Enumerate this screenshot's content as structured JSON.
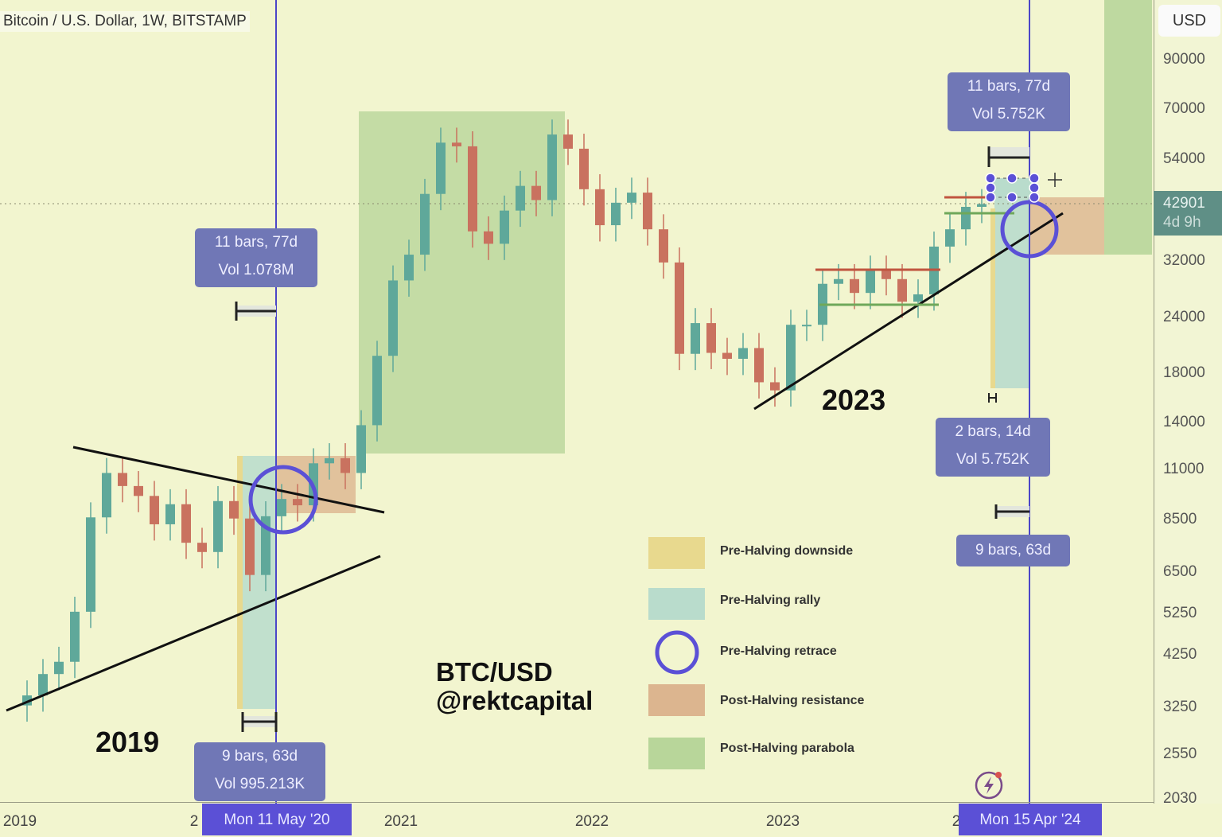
{
  "header": {
    "title": "Bitcoin / U.S. Dollar, 1W, BITSTAMP",
    "currency_button": "USD"
  },
  "price_tag": {
    "price": "42901",
    "countdown": "4d 9h"
  },
  "x_axis": {
    "ticks": [
      "2019",
      "2",
      "2021",
      "2022",
      "2023",
      "2"
    ],
    "crosshair_labels": [
      "Mon 11 May '20",
      "Mon 15 Apr '24"
    ]
  },
  "measurements": [
    {
      "line1": "11 bars, 77d",
      "line2": "Vol 1.078M"
    },
    {
      "line1": "9 bars, 63d",
      "line2": "Vol 995.213K"
    },
    {
      "line1": "11 bars, 77d",
      "line2": "Vol 5.752K"
    },
    {
      "line1": "2 bars, 14d",
      "line2": "Vol 5.752K"
    },
    {
      "line1": "9 bars, 63d"
    }
  ],
  "annotations": {
    "year_2019": "2019",
    "year_2023": "2023",
    "watermark_line1": "BTC/USD",
    "watermark_line2": "@rektcapital"
  },
  "legend": [
    {
      "label": "Pre-Halving downside",
      "color": "#e8d98e"
    },
    {
      "label": "Pre-Halving rally",
      "color": "#b9dccc"
    },
    {
      "label": "Pre-Halving retrace",
      "color": "#5b50d6"
    },
    {
      "label": "Post-Halving resistance",
      "color": "#dcb58f"
    },
    {
      "label": "Post-Halving parabola",
      "color": "#b8d69a"
    }
  ],
  "colors": {
    "up": "#5fa89a",
    "down": "#c9725f",
    "crosshair": "#4b46c8",
    "background": "#f2f5cf"
  },
  "chart_data": {
    "type": "candlestick",
    "title": "Bitcoin / U.S. Dollar, 1W, BITSTAMP",
    "y_scale": "log",
    "y_ticks": [
      90000,
      70000,
      54000,
      32000,
      24000,
      18000,
      14000,
      11000,
      8500,
      6500,
      5250,
      4250,
      3250,
      2550,
      2030
    ],
    "ylim": [
      2030,
      90000
    ],
    "x_range": [
      "2019-01",
      "2024-05"
    ],
    "last_price": 42901,
    "series": {
      "dates": [
        "2019-01",
        "2019-02",
        "2019-03",
        "2019-04",
        "2019-05",
        "2019-06",
        "2019-07",
        "2019-08",
        "2019-09",
        "2019-10",
        "2019-11",
        "2019-12",
        "2020-01",
        "2020-02",
        "2020-03",
        "2020-04",
        "2020-05",
        "2020-06",
        "2020-07",
        "2020-08",
        "2020-09",
        "2020-10",
        "2020-11",
        "2020-12",
        "2021-01",
        "2021-02",
        "2021-03",
        "2021-04",
        "2021-05",
        "2021-06",
        "2021-07",
        "2021-08",
        "2021-09",
        "2021-10",
        "2021-11",
        "2021-12",
        "2022-01",
        "2022-02",
        "2022-03",
        "2022-04",
        "2022-05",
        "2022-06",
        "2022-07",
        "2022-08",
        "2022-09",
        "2022-10",
        "2022-11",
        "2022-12",
        "2023-01",
        "2023-02",
        "2023-03",
        "2023-04",
        "2023-05",
        "2023-06",
        "2023-07",
        "2023-08",
        "2023-09",
        "2023-10",
        "2023-11",
        "2023-12",
        "2024-01"
      ],
      "close": [
        3450,
        3850,
        4100,
        5300,
        8600,
        10800,
        10100,
        9600,
        8300,
        9200,
        7550,
        7200,
        9350,
        8550,
        6400,
        8650,
        9450,
        9150,
        11350,
        11650,
        10800,
        13800,
        19700,
        29000,
        33100,
        45200,
        58800,
        57700,
        37300,
        35000,
        41500,
        47100,
        43800,
        61300,
        57000,
        46300,
        38500,
        43200,
        45500,
        37700,
        31800,
        19900,
        23300,
        20000,
        19400,
        20500,
        17200,
        16500,
        23100,
        23100,
        28500,
        29200,
        27200,
        30500,
        29200,
        26000,
        27000,
        34500,
        37700,
        42300,
        42901
      ]
    }
  }
}
